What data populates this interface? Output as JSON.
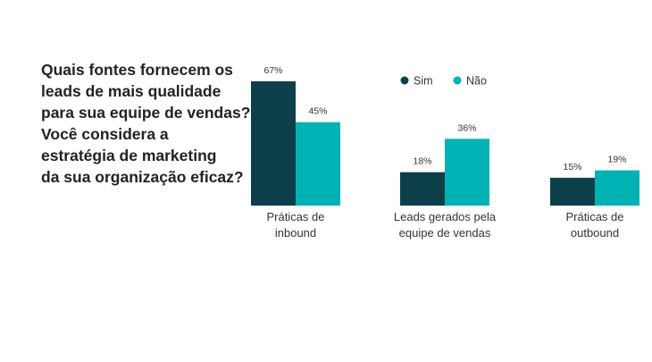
{
  "title_lines": [
    "Quais fontes fornecem os",
    "leads de mais qualidade",
    "para sua equipe de vendas?",
    "Você considera a",
    "estratégia de marketing",
    "da sua organização eficaz?"
  ],
  "chart_data": {
    "type": "bar",
    "title": "Quais fontes fornecem os leads de mais qualidade para sua equipe de vendas? Você considera a estratégia de marketing da sua organização eficaz?",
    "categories": [
      [
        "Práticas de",
        "inbound"
      ],
      [
        "Leads gerados pela",
        "equipe de vendas"
      ],
      [
        "Práticas de",
        "outbound"
      ]
    ],
    "series": [
      {
        "name": "Sim",
        "color": "#0d3f4b",
        "values": [
          67,
          18,
          15
        ],
        "labels": [
          "67%",
          "18%",
          "15%"
        ]
      },
      {
        "name": "Não",
        "color": "#00b2b4",
        "values": [
          45,
          36,
          19
        ],
        "labels": [
          "45%",
          "36%",
          "19%"
        ]
      }
    ],
    "ylim": [
      0,
      67
    ],
    "legend_position": "top-right",
    "xlabel": "",
    "ylabel": ""
  }
}
